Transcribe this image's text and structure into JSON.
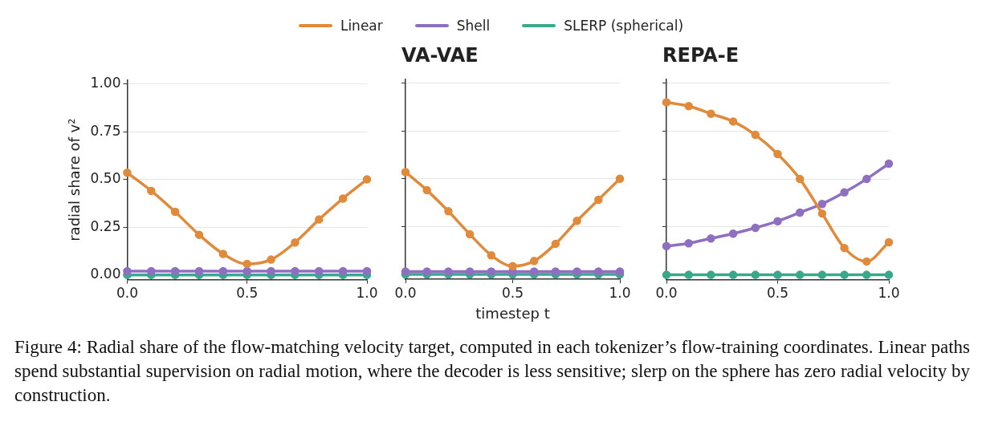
{
  "chart_data": [
    {
      "type": "line",
      "ylabel": "radial share of v²",
      "legend": "top",
      "grid": "y",
      "marker": "circle",
      "line_style": "solid",
      "x": [
        0,
        0.1,
        0.2,
        0.3,
        0.4,
        0.5,
        0.6,
        0.7,
        0.8,
        0.9,
        1.0
      ],
      "xlim": [
        0,
        1
      ],
      "xticks": [
        {
          "value": 0,
          "label": "0.0"
        },
        {
          "value": 0.5,
          "label": "0.5"
        },
        {
          "value": 1,
          "label": "1.0"
        }
      ],
      "ylim": [
        -0.025,
        1.02
      ],
      "yticks": [
        {
          "value": 0,
          "label": "0.00"
        },
        {
          "value": 0.25,
          "label": "0.25"
        },
        {
          "value": 0.5,
          "label": "0.50"
        },
        {
          "value": 0.75,
          "label": "0.75"
        },
        {
          "value": 1,
          "label": "1.00"
        }
      ],
      "series": [
        {
          "name": "Linear",
          "color": "#e08a3c",
          "values": [
            0.535,
            0.44,
            0.33,
            0.21,
            0.11,
            0.057,
            0.08,
            0.17,
            0.29,
            0.4,
            0.5
          ]
        },
        {
          "name": "Shell",
          "color": "#8e6fc0",
          "values": [
            0.02,
            0.02,
            0.02,
            0.02,
            0.02,
            0.02,
            0.02,
            0.02,
            0.02,
            0.02,
            0.02
          ]
        },
        {
          "name": "SLERP (spherical)",
          "color": "#3aa88a",
          "values": [
            0,
            0,
            0,
            0,
            0,
            0,
            0,
            0,
            0,
            0,
            0
          ]
        }
      ],
      "annotations": [
        "Figure 4: Radial share of the flow-matching velocity target, computed in each tokenizer’s flow-training coordinates. Linear paths spend substantial supervision on radial motion, where the decoder is less sensitive; slerp on the sphere has zero radial velocity by construction."
      ]
    },
    {
      "type": "line",
      "title": "VA-VAE",
      "xlabel": "timestep t",
      "grid": "y",
      "marker": "circle",
      "line_style": "solid",
      "tick_labels": "x",
      "x": [
        0,
        0.1,
        0.2,
        0.3,
        0.4,
        0.5,
        0.6,
        0.7,
        0.8,
        0.9,
        1.0
      ],
      "xlim": [
        0,
        1
      ],
      "xticks": [
        {
          "value": 0,
          "label": "0.0"
        },
        {
          "value": 0.5,
          "label": "0.5"
        },
        {
          "value": 1,
          "label": "1.0"
        }
      ],
      "ylim": [
        -0.025,
        1.02
      ],
      "yticks": [
        0,
        0.25,
        0.5,
        0.75,
        1
      ],
      "series": [
        {
          "color": "#e08a3c",
          "values": [
            0.535,
            0.44,
            0.33,
            0.21,
            0.1,
            0.043,
            0.07,
            0.16,
            0.28,
            0.39,
            0.5
          ]
        },
        {
          "color": "#8e6fc0",
          "values": [
            0.015,
            0.015,
            0.015,
            0.015,
            0.015,
            0.015,
            0.015,
            0.015,
            0.015,
            0.015,
            0.015
          ]
        },
        {
          "color": "#3aa88a",
          "values": [
            0,
            0,
            0,
            0,
            0,
            0,
            0,
            0,
            0,
            0,
            0
          ]
        }
      ]
    },
    {
      "type": "line",
      "title": "REPA-E",
      "grid": "y",
      "marker": "circle",
      "line_style": "solid",
      "tick_labels": "x",
      "x": [
        0,
        0.1,
        0.2,
        0.3,
        0.4,
        0.5,
        0.6,
        0.7,
        0.8,
        0.9,
        1.0
      ],
      "xlim": [
        0,
        1
      ],
      "xticks": [
        {
          "value": 0,
          "label": "0.0"
        },
        {
          "value": 0.5,
          "label": "0.5"
        },
        {
          "value": 1,
          "label": "1.0"
        }
      ],
      "ylim": [
        -0.025,
        1.02
      ],
      "yticks": [
        0,
        0.25,
        0.5,
        0.75,
        1
      ],
      "series": [
        {
          "color": "#e08a3c",
          "values": [
            0.9,
            0.88,
            0.84,
            0.8,
            0.73,
            0.63,
            0.5,
            0.32,
            0.14,
            0.07,
            0.17
          ]
        },
        {
          "color": "#8e6fc0",
          "values": [
            0.15,
            0.165,
            0.19,
            0.215,
            0.245,
            0.28,
            0.325,
            0.37,
            0.43,
            0.5,
            0.58
          ]
        },
        {
          "color": "#3aa88a",
          "values": [
            0,
            0,
            0,
            0,
            0,
            0,
            0,
            0,
            0,
            0,
            0
          ]
        }
      ]
    }
  ]
}
